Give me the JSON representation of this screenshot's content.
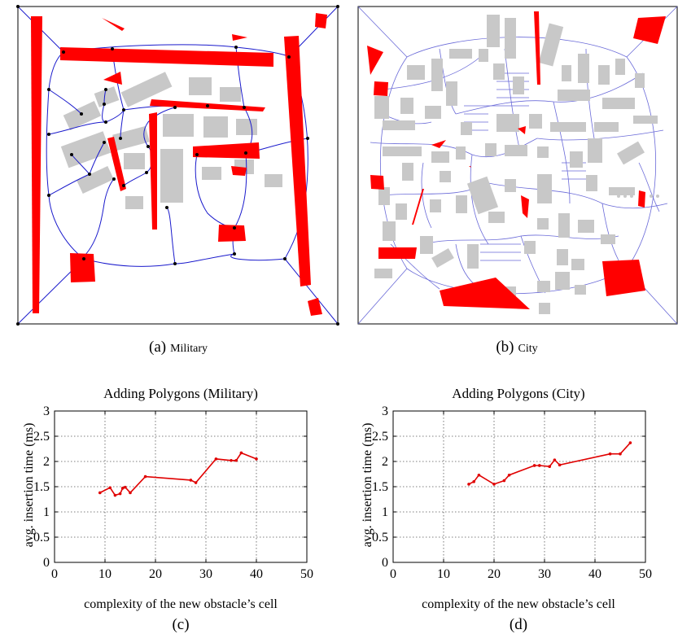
{
  "panels": {
    "a": {
      "label": "(a)",
      "name": "Military"
    },
    "b": {
      "label": "(b)",
      "name": "City"
    },
    "c": {
      "label": "(c)"
    },
    "d": {
      "label": "(d)"
    }
  },
  "colors": {
    "obstacle": "#ff0000",
    "building": "#c8c8c8",
    "graph_edge": "#0000cc",
    "node": "#000000",
    "series": "#e00000"
  },
  "chart_data": [
    {
      "type": "line",
      "title": "Adding Polygons (Military)",
      "xlabel": "complexity of the new obstacle’s cell",
      "ylabel": "avg. insertion time (ms)",
      "xlim": [
        0,
        50
      ],
      "ylim": [
        0,
        3
      ],
      "xticks": [
        "0",
        "10",
        "20",
        "30",
        "40",
        "50"
      ],
      "yticks": [
        "0",
        "0.5",
        "1",
        "1.5",
        "2",
        "2.5",
        "3"
      ],
      "grid": true,
      "series": [
        {
          "x": [
            9,
            11,
            12,
            13,
            13.5,
            14,
            15,
            18,
            27,
            28,
            32,
            35,
            36,
            37,
            40
          ],
          "y": [
            1.38,
            1.48,
            1.33,
            1.36,
            1.47,
            1.49,
            1.38,
            1.7,
            1.63,
            1.58,
            2.05,
            2.02,
            2.02,
            2.17,
            2.05
          ]
        }
      ]
    },
    {
      "type": "line",
      "title": "Adding Polygons (City)",
      "xlabel": "complexity of the new obstacle’s cell",
      "ylabel": "avg. insertion time (ms)",
      "xlim": [
        0,
        50
      ],
      "ylim": [
        0,
        3
      ],
      "xticks": [
        "0",
        "10",
        "20",
        "30",
        "40",
        "50"
      ],
      "yticks": [
        "0",
        "0.5",
        "1",
        "1.5",
        "2",
        "2.5",
        "3"
      ],
      "grid": true,
      "series": [
        {
          "x": [
            15,
            16,
            17,
            20,
            22,
            23,
            28,
            29,
            31,
            32,
            33,
            43,
            45,
            47
          ],
          "y": [
            1.55,
            1.6,
            1.73,
            1.55,
            1.62,
            1.73,
            1.92,
            1.92,
            1.9,
            2.03,
            1.93,
            2.15,
            2.15,
            2.37
          ]
        }
      ]
    }
  ]
}
